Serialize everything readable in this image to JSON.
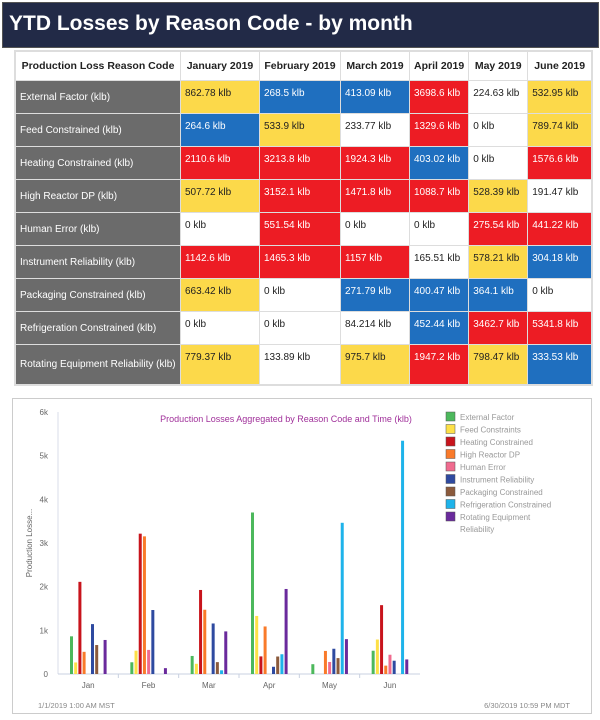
{
  "title": "YTD Losses by Reason Code - by month",
  "table": {
    "headers": [
      "Production Loss Reason Code",
      "January 2019",
      "February 2019",
      "March 2019",
      "April 2019",
      "May 2019",
      "June 2019"
    ],
    "rows": [
      {
        "label": "External Factor (klb)",
        "cells": [
          "862.78 klb",
          "268.5 klb",
          "413.09 klb",
          "3698.6 klb",
          "224.63 klb",
          "532.95 klb"
        ],
        "colors": [
          "yellow",
          "blue",
          "blue",
          "red",
          "white",
          "yellow"
        ]
      },
      {
        "label": "Feed Constrained (klb)",
        "cells": [
          "264.6 klb",
          "533.9 klb",
          "233.77 klb",
          "1329.6 klb",
          "0 klb",
          "789.74 klb"
        ],
        "colors": [
          "blue",
          "yellow",
          "white",
          "red",
          "white",
          "yellow"
        ]
      },
      {
        "label": "Heating Constrained (klb)",
        "cells": [
          "2110.6 klb",
          "3213.8 klb",
          "1924.3 klb",
          "403.02 klb",
          "0 klb",
          "1576.6 klb"
        ],
        "colors": [
          "red",
          "red",
          "red",
          "blue",
          "white",
          "red"
        ]
      },
      {
        "label": "High Reactor DP (klb)",
        "cells": [
          "507.72 klb",
          "3152.1 klb",
          "1471.8 klb",
          "1088.7 klb",
          "528.39 klb",
          "191.47 klb"
        ],
        "colors": [
          "yellow",
          "red",
          "red",
          "red",
          "yellow",
          "white"
        ]
      },
      {
        "label": "Human Error (klb)",
        "cells": [
          "0 klb",
          "551.54 klb",
          "0 klb",
          "0 klb",
          "275.54 klb",
          "441.22 klb"
        ],
        "colors": [
          "white",
          "red",
          "white",
          "white",
          "red",
          "red"
        ]
      },
      {
        "label": "Instrument Reliability (klb)",
        "cells": [
          "1142.6 klb",
          "1465.3 klb",
          "1157 klb",
          "165.51 klb",
          "578.21 klb",
          "304.18 klb"
        ],
        "colors": [
          "red",
          "red",
          "red",
          "white",
          "yellow",
          "blue"
        ]
      },
      {
        "label": "Packaging Constrained (klb)",
        "cells": [
          "663.42 klb",
          "0 klb",
          "271.79 klb",
          "400.47 klb",
          "364.1 klb",
          "0 klb"
        ],
        "colors": [
          "yellow",
          "white",
          "blue",
          "blue",
          "blue",
          "white"
        ]
      },
      {
        "label": "Refrigeration Constrained (klb)",
        "cells": [
          "0 klb",
          "0 klb",
          "84.214 klb",
          "452.44 klb",
          "3462.7 klb",
          "5341.8 klb"
        ],
        "colors": [
          "white",
          "white",
          "white",
          "blue",
          "red",
          "red"
        ]
      },
      {
        "label": "Rotating Equipment Reliability (klb)",
        "cells": [
          "779.37 klb",
          "133.89 klb",
          "975.7 klb",
          "1947.2 klb",
          "798.47 klb",
          "333.53 klb"
        ],
        "colors": [
          "yellow",
          "white",
          "yellow",
          "red",
          "yellow",
          "blue"
        ]
      }
    ]
  },
  "cell_colors": {
    "yellow": "#fcd94a",
    "blue": "#1f6fbf",
    "red": "#ed1c24",
    "white": "#ffffff"
  },
  "chart_data": {
    "type": "bar",
    "title": "Production Losses Aggregated by Reason Code and Time (klb)",
    "ylabel": "Production Losse...",
    "categories": [
      "Jan",
      "Feb",
      "Mar",
      "Apr",
      "May",
      "Jun"
    ],
    "yticks": [
      "0",
      "1k",
      "2k",
      "3k",
      "4k",
      "5k",
      "6k"
    ],
    "ylim": [
      0,
      6000
    ],
    "legend_position": "right",
    "start_label": "1/1/2019 1:00 AM MST",
    "end_label": "6/30/2019 10:59 PM MDT",
    "series": [
      {
        "name": "External Factor",
        "color": "#4cb85c",
        "values": [
          862.78,
          268.5,
          413.09,
          3698.6,
          224.63,
          532.95
        ]
      },
      {
        "name": "Feed Constraints",
        "color": "#fde047",
        "values": [
          264.6,
          533.9,
          233.77,
          1329.6,
          0,
          789.74
        ]
      },
      {
        "name": "Heating Constrained",
        "color": "#c8141c",
        "values": [
          2110.6,
          3213.8,
          1924.3,
          403.02,
          0,
          1576.6
        ]
      },
      {
        "name": "High Reactor DP",
        "color": "#f97a2a",
        "values": [
          507.72,
          3152.1,
          1471.8,
          1088.7,
          528.39,
          191.47
        ]
      },
      {
        "name": "Human Error",
        "color": "#f06b8f",
        "values": [
          0,
          551.54,
          0,
          0,
          275.54,
          441.22
        ]
      },
      {
        "name": "Instrument Reliability",
        "color": "#2e4aa0",
        "values": [
          1142.6,
          1465.3,
          1157,
          165.51,
          578.21,
          304.18
        ]
      },
      {
        "name": "Packaging Constrained",
        "color": "#8b5a3c",
        "values": [
          663.42,
          0,
          271.79,
          400.47,
          364.1,
          0
        ]
      },
      {
        "name": "Refrigeration Constrained",
        "color": "#1eb3ea",
        "values": [
          0,
          0,
          84.214,
          452.44,
          3462.7,
          5341.8
        ]
      },
      {
        "name": "Rotating Equipment Reliability",
        "color": "#6a2a9c",
        "values": [
          779.37,
          133.89,
          975.7,
          1947.2,
          798.47,
          333.53
        ]
      }
    ]
  }
}
